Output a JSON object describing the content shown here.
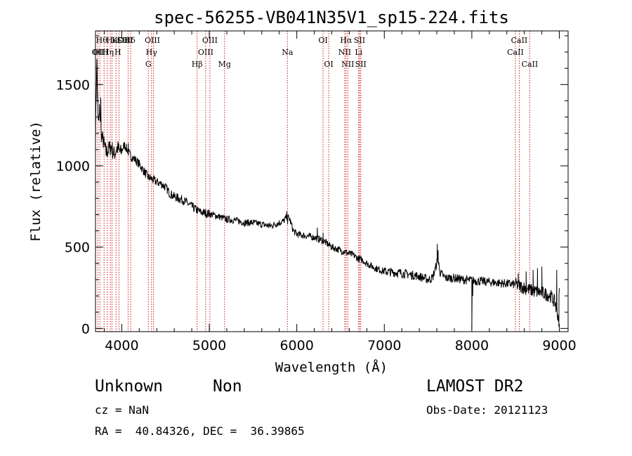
{
  "chart_data": {
    "type": "line",
    "title": "spec-56255-VB041N35V1_sp15-224.fits",
    "xlabel": "Wavelength (Å)",
    "ylabel": "Flux (relative)",
    "xlim": [
      3700,
      9100
    ],
    "ylim": [
      -20,
      1830
    ],
    "x_ticks": [
      4000,
      5000,
      6000,
      7000,
      8000,
      9000
    ],
    "y_ticks": [
      0,
      500,
      1000,
      1500
    ],
    "line_color": "#000000",
    "marker_color": "#cc0000",
    "anchors": [
      [
        3700,
        1200
      ],
      [
        3715,
        1660
      ],
      [
        3730,
        1250
      ],
      [
        3750,
        1330
      ],
      [
        3770,
        1180
      ],
      [
        3790,
        1150
      ],
      [
        3820,
        1080
      ],
      [
        3850,
        1100
      ],
      [
        3880,
        1120
      ],
      [
        3910,
        1070
      ],
      [
        3950,
        1110
      ],
      [
        3990,
        1080
      ],
      [
        4030,
        1130
      ],
      [
        4060,
        1100
      ],
      [
        4100,
        1060
      ],
      [
        4150,
        1040
      ],
      [
        4200,
        1010
      ],
      [
        4250,
        970
      ],
      [
        4300,
        930
      ],
      [
        4340,
        920
      ],
      [
        4400,
        900
      ],
      [
        4450,
        890
      ],
      [
        4500,
        870
      ],
      [
        4550,
        830
      ],
      [
        4600,
        810
      ],
      [
        4650,
        800
      ],
      [
        4700,
        790
      ],
      [
        4750,
        770
      ],
      [
        4800,
        750
      ],
      [
        4850,
        730
      ],
      [
        4900,
        715
      ],
      [
        4950,
        710
      ],
      [
        5000,
        705
      ],
      [
        5100,
        690
      ],
      [
        5200,
        670
      ],
      [
        5300,
        665
      ],
      [
        5400,
        650
      ],
      [
        5500,
        650
      ],
      [
        5600,
        640
      ],
      [
        5700,
        630
      ],
      [
        5800,
        650
      ],
      [
        5850,
        660
      ],
      [
        5890,
        690
      ],
      [
        5920,
        670
      ],
      [
        5960,
        600
      ],
      [
        6000,
        580
      ],
      [
        6100,
        570
      ],
      [
        6200,
        560
      ],
      [
        6300,
        540
      ],
      [
        6400,
        500
      ],
      [
        6500,
        480
      ],
      [
        6560,
        470
      ],
      [
        6600,
        460
      ],
      [
        6650,
        450
      ],
      [
        6700,
        430
      ],
      [
        6750,
        420
      ],
      [
        6800,
        400
      ],
      [
        6900,
        370
      ],
      [
        7000,
        350
      ],
      [
        7100,
        345
      ],
      [
        7200,
        340
      ],
      [
        7300,
        330
      ],
      [
        7400,
        320
      ],
      [
        7450,
        310
      ],
      [
        7500,
        300
      ],
      [
        7550,
        310
      ],
      [
        7590,
        380
      ],
      [
        7610,
        430
      ],
      [
        7640,
        340
      ],
      [
        7700,
        310
      ],
      [
        7800,
        310
      ],
      [
        7900,
        300
      ],
      [
        8000,
        295
      ],
      [
        8100,
        290
      ],
      [
        8200,
        285
      ],
      [
        8300,
        280
      ],
      [
        8400,
        275
      ],
      [
        8500,
        270
      ],
      [
        8600,
        250
      ],
      [
        8700,
        230
      ],
      [
        8800,
        220
      ],
      [
        8900,
        200
      ],
      [
        8960,
        150
      ],
      [
        8990,
        60
      ],
      [
        9000,
        240
      ]
    ],
    "spikes": [
      [
        3712,
        1560
      ],
      [
        3725,
        1450
      ],
      [
        3745,
        1380
      ],
      [
        3760,
        1420
      ],
      [
        4075,
        1140
      ],
      [
        5885,
        720
      ],
      [
        5895,
        640
      ],
      [
        6235,
        620
      ],
      [
        6300,
        590
      ],
      [
        7605,
        520
      ],
      [
        7615,
        480
      ],
      [
        8000,
        -10
      ],
      [
        8010,
        200
      ],
      [
        8530,
        340
      ],
      [
        8620,
        350
      ],
      [
        8700,
        360
      ],
      [
        8750,
        370
      ],
      [
        8800,
        380
      ],
      [
        8960,
        100
      ],
      [
        8970,
        360
      ],
      [
        8995,
        10
      ]
    ],
    "line_markers": [
      {
        "x": 3727,
        "label": "OII",
        "row": 1,
        "tx": 3727
      },
      {
        "x": 3750,
        "label": "Hθ",
        "row": 0,
        "tx": 3770
      },
      {
        "x": 3798,
        "label": "OIII",
        "row": 1,
        "tx": 3760
      },
      {
        "x": 3835,
        "label": "Hη",
        "row": 1,
        "tx": 3845
      },
      {
        "x": 3869,
        "label": "HeI",
        "row": 0,
        "tx": 3905
      },
      {
        "x": 3889,
        "label": "K",
        "row": 0,
        "tx": 3920
      },
      {
        "x": 3934,
        "label": "H",
        "row": 1,
        "tx": 3955
      },
      {
        "x": 3969,
        "label": "SII",
        "row": 0,
        "tx": 4010
      },
      {
        "x": 4072,
        "label": "Hδ",
        "row": 0,
        "tx": 4090
      },
      {
        "x": 4102,
        "label": "OIII",
        "row": 0,
        "tx": 4040
      },
      {
        "x": 4304,
        "label": "G",
        "row": 2,
        "tx": 4304
      },
      {
        "x": 4340,
        "label": "Hγ",
        "row": 1,
        "tx": 4340
      },
      {
        "x": 4363,
        "label": "OIII",
        "row": 0,
        "tx": 4350
      },
      {
        "x": 4861,
        "label": "Hβ",
        "row": 2,
        "tx": 4861
      },
      {
        "x": 4959,
        "label": "OIII",
        "row": 1,
        "tx": 4959
      },
      {
        "x": 5007,
        "label": "OIII",
        "row": 0,
        "tx": 5007
      },
      {
        "x": 5175,
        "label": "Mg",
        "row": 2,
        "tx": 5175
      },
      {
        "x": 5893,
        "label": "Na",
        "row": 1,
        "tx": 5893
      },
      {
        "x": 6300,
        "label": "OI",
        "row": 0,
        "tx": 6300
      },
      {
        "x": 6364,
        "label": "OI",
        "row": 2,
        "tx": 6364
      },
      {
        "x": 6548,
        "label": "NII",
        "row": 1,
        "tx": 6548
      },
      {
        "x": 6563,
        "label": "Hα",
        "row": 0,
        "tx": 6563
      },
      {
        "x": 6583,
        "label": "NII",
        "row": 2,
        "tx": 6583
      },
      {
        "x": 6707,
        "label": "Li",
        "row": 1,
        "tx": 6707
      },
      {
        "x": 6717,
        "label": "SII",
        "row": 0,
        "tx": 6717
      },
      {
        "x": 6731,
        "label": "SII",
        "row": 2,
        "tx": 6731
      },
      {
        "x": 8498,
        "label": "CaII",
        "row": 1,
        "tx": 8498
      },
      {
        "x": 8542,
        "label": "CaII",
        "row": 0,
        "tx": 8542
      },
      {
        "x": 8662,
        "label": "CaII",
        "row": 2,
        "tx": 8662
      }
    ]
  },
  "info": {
    "class_label": "Unknown",
    "subclass_label": "Non",
    "survey": "LAMOST DR2",
    "cz": "cz = NaN",
    "obs_date": "Obs-Date: 20121123",
    "coords": "RA =  40.84326, DEC =  36.39865"
  }
}
